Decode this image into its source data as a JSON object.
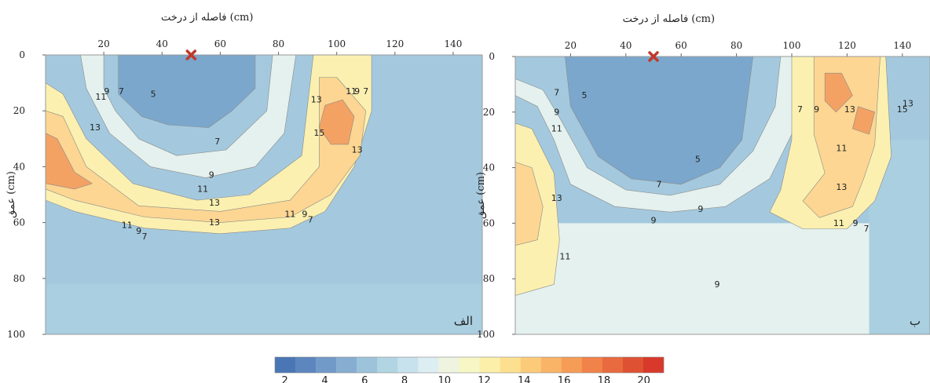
{
  "chart_data": [
    {
      "type": "heatmap",
      "panel_label": "الف",
      "title": "فاصله از درخت (cm)",
      "xlabel": "فاصله از درخت (cm)",
      "ylabel": "عمق (cm)",
      "xlim": [
        0,
        150
      ],
      "ylim": [
        0,
        100
      ],
      "x_ticks": [
        20,
        40,
        60,
        80,
        100,
        120,
        140
      ],
      "y_ticks": [
        0,
        20,
        40,
        60,
        80,
        100
      ],
      "tree_marker": {
        "x": 50,
        "y": 0
      },
      "contour_labels": [
        {
          "text": "7",
          "x": 26,
          "y": 14
        },
        {
          "text": "5",
          "x": 37,
          "y": 15
        },
        {
          "text": "9",
          "x": 21,
          "y": 14
        },
        {
          "text": "11",
          "x": 19,
          "y": 16
        },
        {
          "text": "13",
          "x": 17,
          "y": 27
        },
        {
          "text": "7",
          "x": 59,
          "y": 32
        },
        {
          "text": "9",
          "x": 57,
          "y": 44
        },
        {
          "text": "11",
          "x": 54,
          "y": 49
        },
        {
          "text": "13",
          "x": 58,
          "y": 54
        },
        {
          "text": "13",
          "x": 58,
          "y": 61
        },
        {
          "text": "11",
          "x": 84,
          "y": 58
        },
        {
          "text": "9",
          "x": 89,
          "y": 58
        },
        {
          "text": "7",
          "x": 91,
          "y": 60
        },
        {
          "text": "11",
          "x": 28,
          "y": 62
        },
        {
          "text": "9",
          "x": 32,
          "y": 64
        },
        {
          "text": "7",
          "x": 34,
          "y": 66
        },
        {
          "text": "13",
          "x": 93,
          "y": 17
        },
        {
          "text": "15",
          "x": 94,
          "y": 29
        },
        {
          "text": "13",
          "x": 107,
          "y": 35
        },
        {
          "text": "11",
          "x": 105,
          "y": 14
        },
        {
          "text": "9",
          "x": 107,
          "y": 14
        },
        {
          "text": "7",
          "x": 110,
          "y": 14
        }
      ],
      "series": [
        {
          "name": "5",
          "polygon": [
            [
              25,
              0
            ],
            [
              25,
              14
            ],
            [
              33,
              22
            ],
            [
              42,
              25
            ],
            [
              56,
              26
            ],
            [
              64,
              20
            ],
            [
              72,
              12
            ],
            [
              72,
              0
            ]
          ]
        },
        {
          "name": "7",
          "polygon": [
            [
              20,
              0
            ],
            [
              20,
              12
            ],
            [
              24,
              20
            ],
            [
              32,
              30
            ],
            [
              45,
              36
            ],
            [
              62,
              34
            ],
            [
              76,
              20
            ],
            [
              78,
              0
            ]
          ]
        },
        {
          "name": "9",
          "polygon": [
            [
              12,
              0
            ],
            [
              14,
              12
            ],
            [
              22,
              28
            ],
            [
              36,
              40
            ],
            [
              55,
              44
            ],
            [
              72,
              40
            ],
            [
              82,
              28
            ],
            [
              86,
              0
            ]
          ]
        },
        {
          "name": "11",
          "polygon": [
            [
              0,
              10
            ],
            [
              6,
              14
            ],
            [
              14,
              30
            ],
            [
              30,
              46
            ],
            [
              52,
              52
            ],
            [
              70,
              50
            ],
            [
              88,
              36
            ],
            [
              92,
              0
            ],
            [
              112,
              0
            ],
            [
              112,
              20
            ],
            [
              106,
              40
            ],
            [
              96,
              56
            ],
            [
              84,
              62
            ],
            [
              60,
              64
            ],
            [
              34,
              62
            ],
            [
              10,
              56
            ],
            [
              0,
              52
            ]
          ]
        },
        {
          "name": "13",
          "polygon": [
            [
              0,
              20
            ],
            [
              6,
              22
            ],
            [
              14,
              40
            ],
            [
              32,
              54
            ],
            [
              60,
              56
            ],
            [
              84,
              52
            ],
            [
              94,
              40
            ],
            [
              94,
              8
            ],
            [
              100,
              8
            ],
            [
              110,
              20
            ],
            [
              108,
              36
            ],
            [
              98,
              50
            ],
            [
              84,
              58
            ],
            [
              60,
              60
            ],
            [
              34,
              58
            ],
            [
              10,
              52
            ],
            [
              0,
              48
            ]
          ]
        },
        {
          "name": "15",
          "polygon": [
            [
              0,
              28
            ],
            [
              4,
              30
            ],
            [
              10,
              42
            ],
            [
              16,
              46
            ],
            [
              10,
              48
            ],
            [
              0,
              46
            ]
          ]
        },
        {
          "name": "15",
          "polygon": [
            [
              96,
              18
            ],
            [
              102,
              16
            ],
            [
              106,
              22
            ],
            [
              104,
              32
            ],
            [
              98,
              32
            ],
            [
              94,
              26
            ]
          ]
        }
      ],
      "base_bands": [
        {
          "name": "7",
          "from": 64,
          "to": 82
        },
        {
          "name": "6",
          "from": 82,
          "to": 100
        }
      ]
    },
    {
      "type": "heatmap",
      "panel_label": "ب",
      "title": "فاصله از درخت (cm)",
      "xlabel": "فاصله از درخت (cm)",
      "ylabel": "عمق (cm)",
      "xlim": [
        0,
        150
      ],
      "ylim": [
        0,
        100
      ],
      "x_ticks": [
        20,
        40,
        60,
        80,
        100,
        120,
        140
      ],
      "y_ticks": [
        0,
        20,
        40,
        60,
        80,
        100
      ],
      "tree_marker": {
        "x": 50,
        "y": 0
      },
      "contour_labels": [
        {
          "text": "7",
          "x": 15,
          "y": 14
        },
        {
          "text": "5",
          "x": 25,
          "y": 15
        },
        {
          "text": "9",
          "x": 15,
          "y": 21
        },
        {
          "text": "11",
          "x": 15,
          "y": 27
        },
        {
          "text": "13",
          "x": 15,
          "y": 52
        },
        {
          "text": "11",
          "x": 18,
          "y": 73
        },
        {
          "text": "5",
          "x": 66,
          "y": 38
        },
        {
          "text": "7",
          "x": 52,
          "y": 47
        },
        {
          "text": "9",
          "x": 50,
          "y": 60
        },
        {
          "text": "9",
          "x": 67,
          "y": 56
        },
        {
          "text": "9",
          "x": 73,
          "y": 83
        },
        {
          "text": "7",
          "x": 103,
          "y": 20
        },
        {
          "text": "9",
          "x": 109,
          "y": 20
        },
        {
          "text": "13",
          "x": 121,
          "y": 20
        },
        {
          "text": "15",
          "x": 140,
          "y": 20
        },
        {
          "text": "11",
          "x": 118,
          "y": 34
        },
        {
          "text": "13",
          "x": 118,
          "y": 48
        },
        {
          "text": "11",
          "x": 117,
          "y": 61
        },
        {
          "text": "9",
          "x": 123,
          "y": 61
        },
        {
          "text": "7",
          "x": 127,
          "y": 63
        },
        {
          "text": "13",
          "x": 142,
          "y": 18
        }
      ],
      "series": [
        {
          "name": "5",
          "polygon": [
            [
              18,
              0
            ],
            [
              20,
              18
            ],
            [
              30,
              36
            ],
            [
              42,
              44
            ],
            [
              60,
              46
            ],
            [
              74,
              40
            ],
            [
              82,
              30
            ],
            [
              86,
              0
            ]
          ]
        },
        {
          "name": "7",
          "polygon": [
            [
              0,
              8
            ],
            [
              10,
              12
            ],
            [
              16,
              22
            ],
            [
              26,
              40
            ],
            [
              40,
              48
            ],
            [
              56,
              50
            ],
            [
              74,
              46
            ],
            [
              86,
              34
            ],
            [
              94,
              18
            ],
            [
              96,
              0
            ],
            [
              0,
              0
            ]
          ]
        },
        {
          "name": "9",
          "polygon": [
            [
              0,
              14
            ],
            [
              8,
              18
            ],
            [
              14,
              30
            ],
            [
              20,
              46
            ],
            [
              36,
              54
            ],
            [
              56,
              56
            ],
            [
              76,
              54
            ],
            [
              92,
              44
            ],
            [
              100,
              28
            ],
            [
              102,
              0
            ],
            [
              0,
              0
            ]
          ]
        },
        {
          "name": "11",
          "polygon": [
            [
              0,
              24
            ],
            [
              6,
              26
            ],
            [
              14,
              42
            ],
            [
              16,
              66
            ],
            [
              14,
              82
            ],
            [
              0,
              86
            ]
          ]
        },
        {
          "name": "11",
          "polygon": [
            [
              100,
              0
            ],
            [
              100,
              30
            ],
            [
              96,
              48
            ],
            [
              92,
              56
            ],
            [
              104,
              62
            ],
            [
              120,
              62
            ],
            [
              130,
              52
            ],
            [
              136,
              36
            ],
            [
              134,
              0
            ]
          ]
        },
        {
          "name": "13",
          "polygon": [
            [
              0,
              38
            ],
            [
              6,
              40
            ],
            [
              10,
              54
            ],
            [
              8,
              66
            ],
            [
              0,
              68
            ]
          ]
        },
        {
          "name": "13",
          "polygon": [
            [
              108,
              0
            ],
            [
              108,
              28
            ],
            [
              112,
              42
            ],
            [
              104,
              52
            ],
            [
              110,
              58
            ],
            [
              122,
              54
            ],
            [
              126,
              44
            ],
            [
              130,
              32
            ],
            [
              132,
              0
            ]
          ]
        },
        {
          "name": "15",
          "polygon": [
            [
              112,
              6
            ],
            [
              118,
              6
            ],
            [
              122,
              14
            ],
            [
              116,
              20
            ],
            [
              112,
              16
            ]
          ]
        },
        {
          "name": "15",
          "polygon": [
            [
              124,
              18
            ],
            [
              130,
              20
            ],
            [
              128,
              28
            ],
            [
              122,
              26
            ]
          ]
        }
      ],
      "base_bands": [
        {
          "name": "9",
          "from": 60,
          "to": 100
        },
        {
          "name": "6",
          "x_from": 128,
          "x_to": 150,
          "from": 30,
          "to": 100
        }
      ]
    }
  ],
  "colorbar": {
    "ticks": [
      2,
      4,
      6,
      8,
      10,
      12,
      14,
      16,
      18,
      20
    ],
    "min": 1.5,
    "max": 21,
    "colors": [
      "#4a76b6",
      "#5d86bf",
      "#719ac9",
      "#87aed1",
      "#9cc3da",
      "#b2d5e3",
      "#c7e2ec",
      "#dceef2",
      "#eef4df",
      "#f7f7c6",
      "#fbefa9",
      "#fde08f",
      "#fccb7a",
      "#f9b467",
      "#f59c57",
      "#f0824a",
      "#e96a3e",
      "#df5133",
      "#d8392b"
    ]
  },
  "contour_colors": {
    "5": "#7ba7cc",
    "6": "#a9cfe0",
    "7": "#a4c9de",
    "9": "#e4f1ee",
    "11": "#fbf0b0",
    "13": "#fcd692",
    "15": "#f3a264"
  },
  "marker_color": "#c0392b"
}
